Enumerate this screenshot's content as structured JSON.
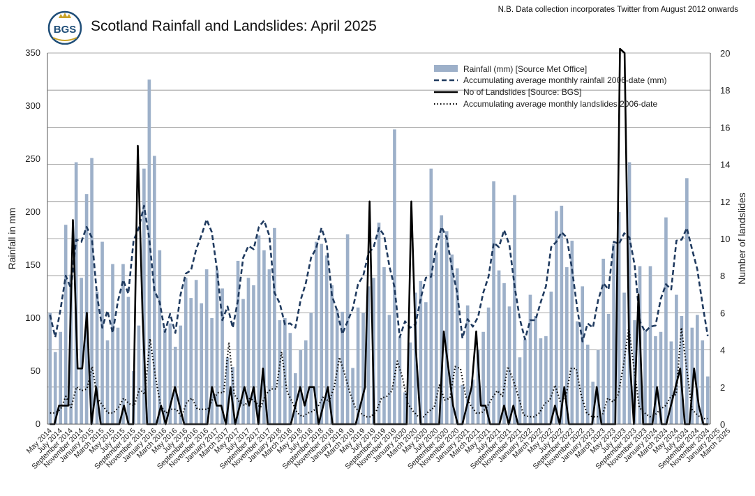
{
  "header": {
    "title": "Scotland Rainfall and Landslides: April 2025",
    "note": "N.B. Data collection incorporates Twitter from August 2012 onwards",
    "logo_text": "BGS"
  },
  "colors": {
    "bar": "#9db0c9",
    "accumulating_rainfall_line": "#1f3a5f",
    "landslides_line": "#000000",
    "accumulating_landslides_line": "#000000",
    "logo": "#1f4e78",
    "logo_accent": "#c9a227"
  },
  "chart_data": {
    "type": "bar",
    "title": "Scotland Rainfall and Landslides: April 2025",
    "ylabel": "Rainfall in mm",
    "y2label": "Number of landslides",
    "ylim": [
      0,
      350
    ],
    "y2lim": [
      0,
      20
    ],
    "yticks": [
      "0",
      "50",
      "100",
      "150",
      "200",
      "250",
      "300",
      "350"
    ],
    "y2ticks": [
      "0",
      "2",
      "4",
      "6",
      "8",
      "10",
      "12",
      "14",
      "16",
      "18",
      "20"
    ],
    "grid": "horizontal",
    "legend_position": "top-right",
    "x_start": "May 2014",
    "x_tick_labels": [
      "May 2014",
      "July 2014",
      "September 2014",
      "November 2014",
      "January 2015",
      "March 2015",
      "May 2015",
      "July 2015",
      "September 2015",
      "November 2015",
      "January 2016",
      "March 2016",
      "May 2016",
      "July 2016",
      "September 2016",
      "November 2016",
      "January 2017",
      "March 2017",
      "May 2017",
      "July 2017",
      "September 2017",
      "November 2017",
      "January 2018",
      "March 2018",
      "May 2018",
      "July 2018",
      "September 2018",
      "November 2018",
      "January 2019",
      "March 2019",
      "May 2019",
      "July 2019",
      "September 2019",
      "November 2019",
      "January 2020",
      "March 2020",
      "May 2020",
      "July 2020",
      "September 2020",
      "November 2020",
      "January 2021",
      "March 2021",
      "May 2021",
      "July 2021",
      "September 2021",
      "November 2021",
      "January 2022",
      "March 2022",
      "May 2022",
      "July 2022",
      "September 2022",
      "November 2022",
      "January 2023",
      "March 2023",
      "May 2023",
      "July 2023",
      "September 2023",
      "November 2023",
      "January 2024",
      "March 2024",
      "May 2024",
      "July 2024",
      "September 2024",
      "November 2024",
      "January 2025",
      "March 2025"
    ],
    "series": [
      {
        "name": "Rainfall (mm) [Source Met Office]",
        "type": "bar",
        "axis": "left",
        "values": [
          105,
          68,
          87,
          188,
          141,
          247,
          138,
          217,
          251,
          125,
          172,
          79,
          151,
          91,
          151,
          120,
          50,
          93,
          241,
          325,
          253,
          164,
          90,
          95,
          73,
          93,
          138,
          119,
          136,
          114,
          146,
          100,
          145,
          128,
          63,
          54,
          154,
          118,
          138,
          131,
          178,
          164,
          146,
          185,
          98,
          100,
          86,
          48,
          70,
          79,
          105,
          172,
          170,
          159,
          131,
          108,
          106,
          179,
          53,
          110,
          105,
          130,
          138,
          190,
          148,
          103,
          278,
          82,
          30,
          77,
          124,
          135,
          115,
          241,
          162,
          197,
          182,
          160,
          147,
          37,
          112,
          42,
          70,
          87,
          110,
          229,
          145,
          133,
          111,
          216,
          63,
          80,
          122,
          102,
          81,
          83,
          125,
          201,
          206,
          148,
          173,
          97,
          130,
          75,
          40,
          70,
          156,
          104,
          170,
          200,
          124,
          247,
          98,
          149,
          88,
          149,
          83,
          87,
          195,
          78,
          122,
          102,
          232,
          91,
          103,
          79,
          45
        ],
        "colorKey": "bar"
      },
      {
        "name": "Accumulating average monthly rainfall 2006-date (mm)",
        "type": "line",
        "style": "dashed",
        "axis": "left",
        "values": [
          103,
          82,
          108,
          140,
          128,
          174,
          172,
          186,
          176,
          121,
          91,
          107,
          86,
          116,
          136,
          123,
          173,
          185,
          206,
          175,
          126,
          115,
          87,
          104,
          86,
          122,
          142,
          145,
          165,
          178,
          193,
          181,
          145,
          98,
          111,
          91,
          117,
          157,
          168,
          165,
          186,
          192,
          178,
          124,
          114,
          94,
          95,
          91,
          117,
          133,
          157,
          166,
          185,
          170,
          121,
          107,
          85,
          97,
          109,
          132,
          140,
          161,
          167,
          185,
          178,
          149,
          129,
          82,
          97,
          91,
          94,
          118,
          138,
          139,
          168,
          186,
          176,
          147,
          124,
          81,
          99,
          92,
          101,
          124,
          139,
          171,
          167,
          183,
          169,
          130,
          99,
          80,
          98,
          98,
          115,
          130,
          167,
          172,
          181,
          176,
          146,
          109,
          78,
          95,
          91,
          117,
          133,
          127,
          172,
          170,
          180,
          176,
          150,
          97,
          87,
          92,
          93,
          118,
          132,
          127,
          173,
          174,
          185,
          165,
          146,
          113,
          83
        ],
        "colorKey": "accumulating_rainfall_line"
      },
      {
        "name": "No of Landslides [Source: BGS]",
        "type": "line",
        "style": "solid",
        "axis": "right",
        "values": [
          0,
          0,
          1,
          1,
          1,
          11,
          3,
          3,
          6,
          0,
          2,
          0,
          0,
          0,
          0,
          0,
          1,
          0,
          0,
          15,
          6,
          0,
          0,
          0,
          1,
          0,
          1,
          2,
          1,
          0,
          0,
          0,
          0,
          0,
          0,
          2,
          1,
          1,
          0,
          2,
          0,
          1,
          2,
          1,
          2,
          0,
          3,
          0,
          0,
          0,
          0,
          0,
          0,
          1,
          2,
          1,
          2,
          2,
          0,
          1,
          2,
          0,
          0,
          0,
          0,
          0,
          0,
          1,
          2,
          12,
          0,
          0,
          0,
          0,
          0,
          0,
          0,
          0,
          12,
          4,
          0,
          0,
          0,
          0,
          0,
          5,
          3,
          1,
          0,
          0,
          1,
          2,
          5,
          1,
          1,
          0,
          0,
          0,
          1,
          0,
          1,
          0,
          0,
          0,
          0,
          0,
          0,
          0,
          0,
          1,
          0,
          2,
          0,
          0,
          0,
          0,
          0,
          0,
          2,
          0,
          0,
          0,
          0,
          21,
          20,
          4,
          0,
          7,
          0,
          0,
          0,
          2,
          0,
          0,
          1,
          2,
          3,
          0,
          0,
          3,
          1,
          0,
          0
        ],
        "colorKey": "landslides_line"
      },
      {
        "name": "Accumulating average monthly landslides 2006-date",
        "type": "line",
        "style": "dotted",
        "axis": "right",
        "values": [
          0.6,
          0.6,
          0.8,
          1.5,
          0.9,
          2,
          1.8,
          1.9,
          3.1,
          1.4,
          1,
          0.6,
          0.6,
          0.9,
          1.4,
          1.1,
          1,
          1.9,
          1.6,
          4.6,
          2.6,
          1,
          0.6,
          0.8,
          0.8,
          0.4,
          1.2,
          1.4,
          0.8,
          0.8,
          0.8,
          1.4,
          1.7,
          1.7,
          4.4,
          1.6,
          1.2,
          1,
          1.4,
          1.2,
          0.9,
          1.6,
          1.9,
          1.9,
          3.9,
          1.8,
          1.2,
          0.6,
          0.4,
          0.6,
          0.7,
          1,
          1.5,
          1.2,
          2,
          3.6,
          2.7,
          1.7,
          0.9,
          0.6,
          0.4,
          0.4,
          0.7,
          1.4,
          1.5,
          1.8,
          3.4,
          2.5,
          1.1,
          0.7,
          0.4,
          0.4,
          0.7,
          0.9,
          2.1,
          1.3,
          1.4,
          3.1,
          3,
          1.5,
          1,
          0.6,
          0.6,
          0.9,
          1.4,
          1.8,
          1.5,
          3.1,
          2.4,
          1.5,
          0.5,
          0.4,
          0.4,
          0.6,
          1.1,
          1.3,
          2.1,
          1.2,
          1.4,
          3,
          3,
          1.5,
          0.6,
          0.4,
          0.4,
          0.5,
          1.4,
          1.2,
          1.6,
          3.2,
          5.2,
          3,
          0.9,
          0.6,
          0.4,
          0.5,
          0.8,
          1,
          1.5,
          1.6,
          5.2,
          3,
          0.8,
          0.5,
          0.3,
          0.3
        ],
        "colorKey": "accumulating_landslides_line"
      }
    ]
  }
}
